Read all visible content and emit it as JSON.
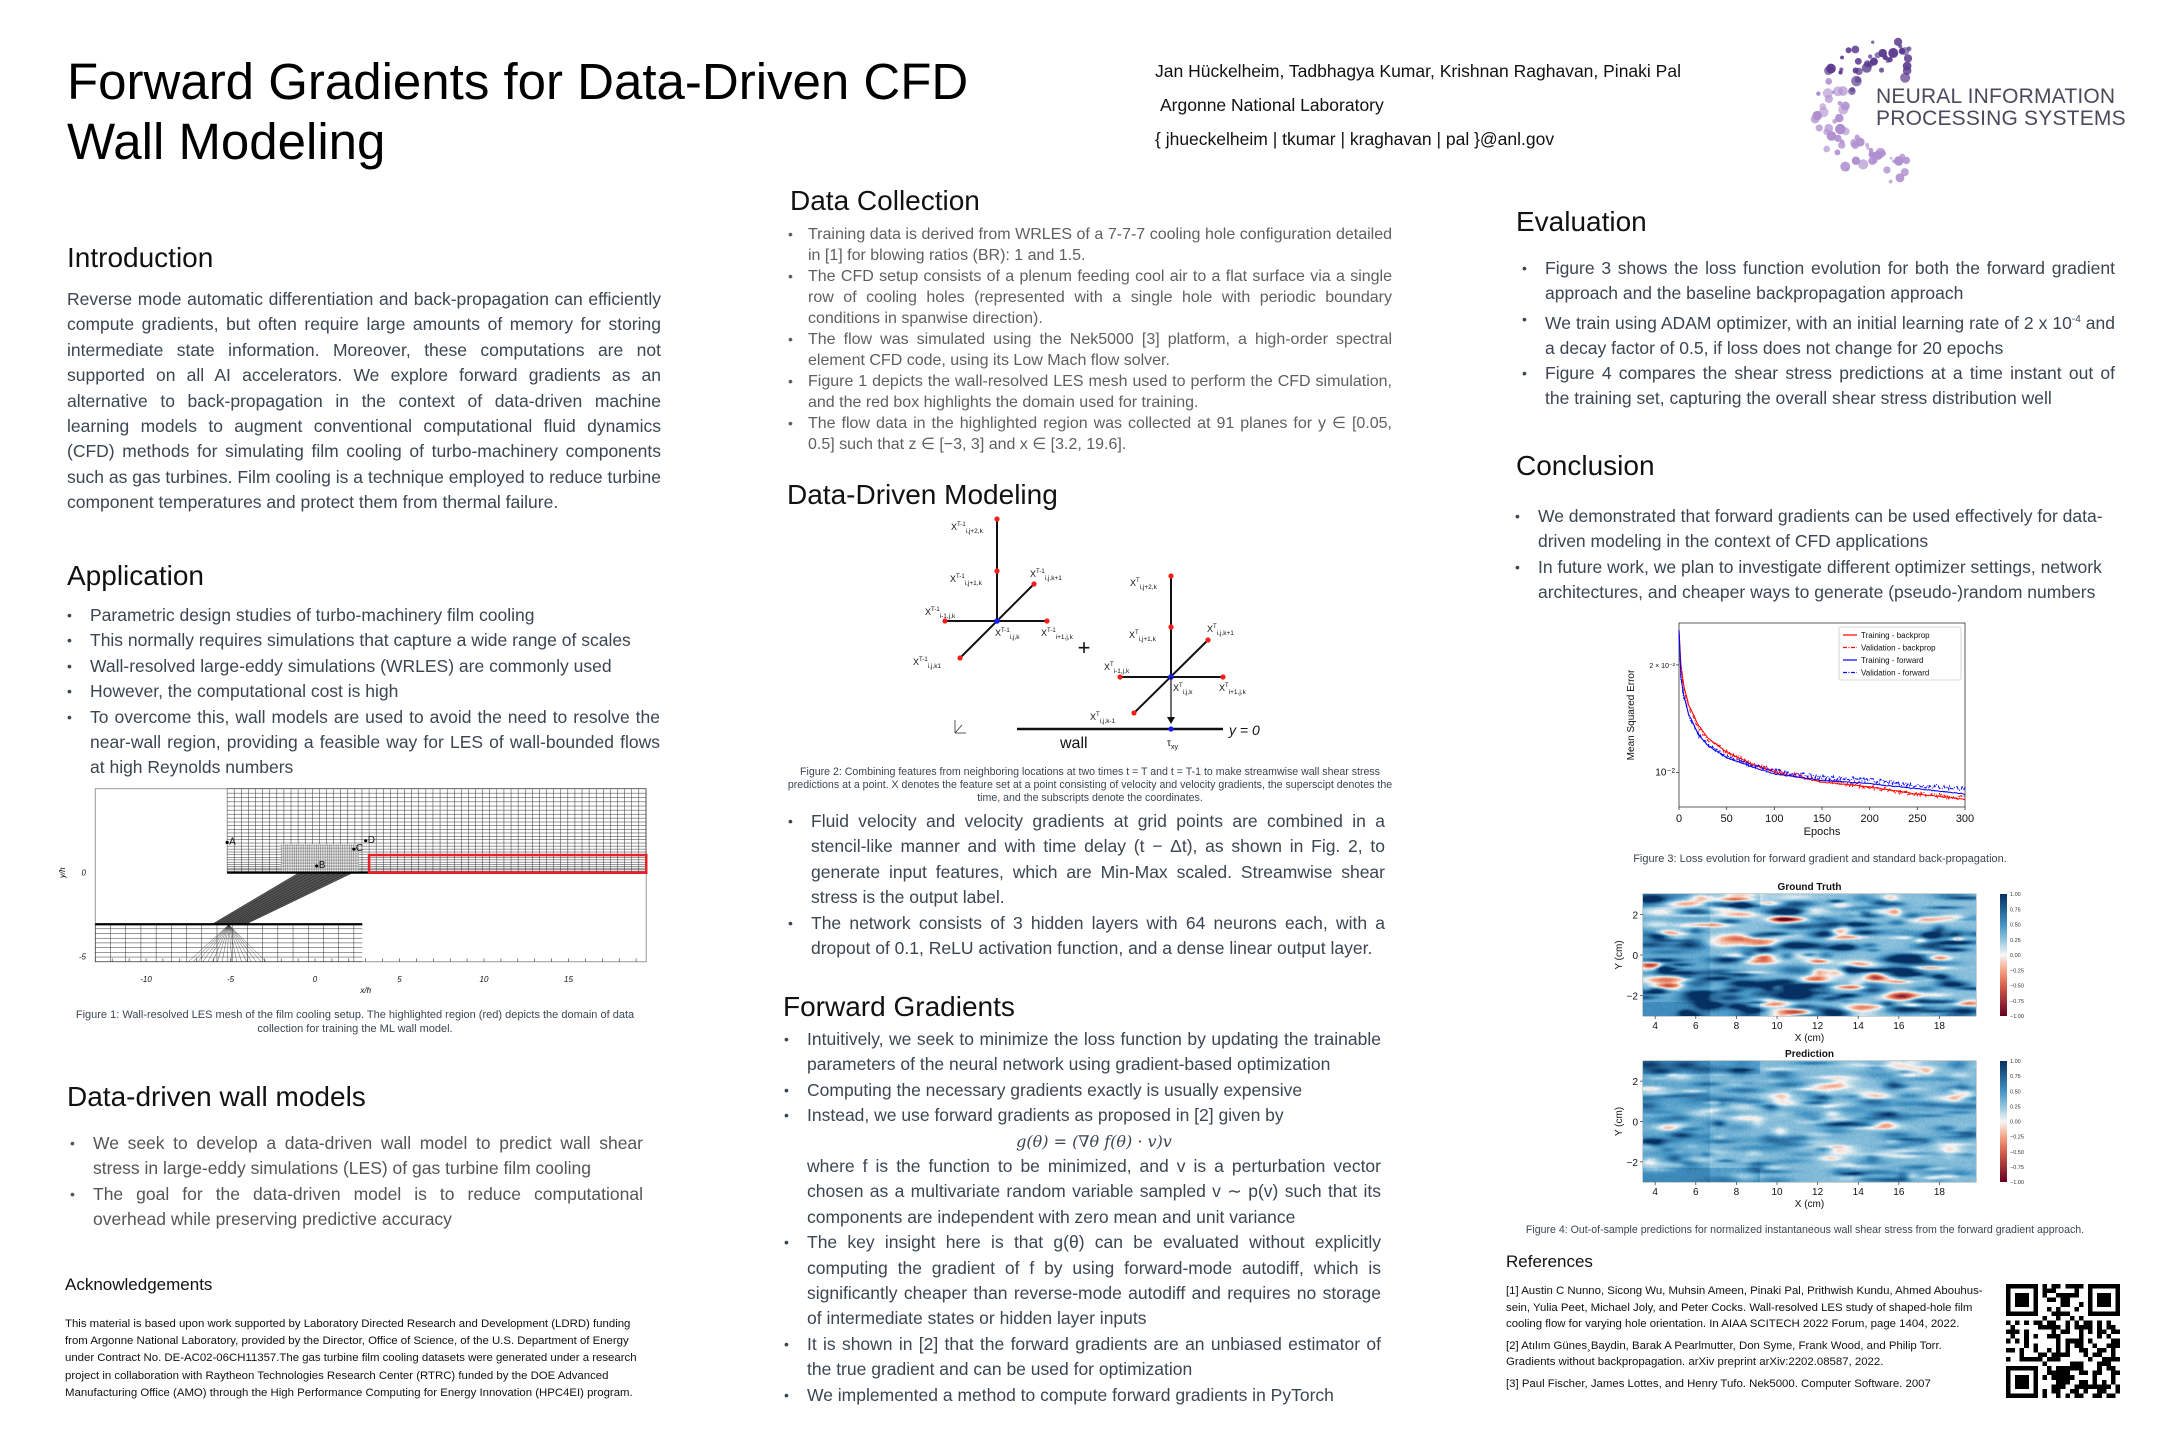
{
  "header": {
    "title_line1": "Forward Gradients for Data-Driven CFD",
    "title_line2": "Wall Modeling",
    "authors": "Jan Hückelheim, Tadbhagya Kumar, Krishnan Raghavan, Pinaki Pal",
    "affiliation": "Argonne National Laboratory",
    "emails": "{ jhueckelheim | tkumar | kraghavan | pal }@anl.gov",
    "logo": {
      "line1": "NEURAL INFORMATION",
      "line2": "PROCESSING SYSTEMS",
      "colors": [
        "#5a3a8e",
        "#b08fd0"
      ]
    }
  },
  "introduction": {
    "heading": "Introduction",
    "text": "Reverse mode automatic differentiation and back-propagation can efficiently compute gradients, but often require large amounts of memory for storing intermediate state information. Moreover, these computations are not supported on all AI accelerators. We explore forward gradients as an alternative to back-propagation in the context of data-driven machine learning models to augment conventional computational fluid dynamics (CFD) methods for simulating film cooling of turbo-machinery components such as gas turbines. Film cooling is a technique employed to reduce turbine component temperatures and protect them from thermal failure."
  },
  "application": {
    "heading": "Application",
    "bullets": [
      "Parametric design studies of turbo-machinery film cooling",
      "This normally requires simulations that capture a wide range of scales",
      "Wall-resolved large-eddy simulations (WRLES) are commonly used",
      "However, the computational cost is high",
      "To overcome this, wall models are used to avoid the need to resolve the near-wall region, providing a feasible way for LES of wall-bounded flows at high Reynolds numbers"
    ]
  },
  "figure1": {
    "caption": "Figure 1: Wall-resolved LES mesh of the film cooling setup. The highlighted region (red) depicts the domain of data collection for training the ML wall model.",
    "xlabel": "x/h",
    "ylabel": "y/h",
    "xticks": [
      "-10",
      "-5",
      "0",
      "5",
      "10",
      "15"
    ],
    "yticks": [
      "0",
      "-5"
    ],
    "point_labels": [
      "A",
      "B",
      "C",
      "D"
    ],
    "highlight_color": "#e8202a"
  },
  "wall_models": {
    "heading": "Data-driven wall models",
    "bullets": [
      "We seek to develop a data-driven wall model to predict wall shear stress in large-eddy simulations (LES) of gas turbine film cooling",
      "The goal for the data-driven model is to reduce computational overhead while preserving predictive accuracy"
    ]
  },
  "acknowledgements": {
    "heading": "Acknowledgements",
    "text": "This material is based upon work supported by Laboratory Directed Research and Development (LDRD) funding from Argonne National Laboratory, provided by the Director, Office of Science, of the U.S. Department of Energy under Contract No. DE-AC02-06CH11357.The gas turbine film cooling datasets were generated under a research project in collaboration with Raytheon Technologies Research Center (RTRC) funded by the DOE Advanced Manufacturing Office (AMO) through the High Performance Computing for Energy Innovation (HPC4EI) program."
  },
  "data_collection": {
    "heading": "Data Collection",
    "bullets": [
      "Training data is derived from WRLES of a 7-7-7 cooling hole configuration detailed in [1] for blowing ratios (BR): 1 and 1.5.",
      "The CFD setup consists of a plenum feeding cool air to a flat surface via a single row of cooling holes (represented with a single hole with periodic boundary conditions in spanwise direction).",
      "The flow was simulated using the Nek5000 [3] platform, a high-order spectral element CFD code, using its Low Mach flow solver.",
      "Figure 1 depicts the wall-resolved LES mesh used to perform the CFD simulation, and the red box highlights the domain used for training.",
      "The flow data in the highlighted region was collected at 91 planes for y ∈ [0.05, 0.5] such that z ∈ [−3, 3] and x ∈ [3.2, 19.6]."
    ]
  },
  "data_driven_modeling": {
    "heading": "Data-Driven Modeling",
    "figure2": {
      "labels_prev": [
        {
          "base": "X",
          "sup": "T-1",
          "sub": "i,j+2,k"
        },
        {
          "base": "X",
          "sup": "T-1",
          "sub": "i,j+1,k"
        },
        {
          "base": "X",
          "sup": "T-1",
          "sub": "i,j,k+1"
        },
        {
          "base": "X",
          "sup": "T-1",
          "sub": "i-1,j,k"
        },
        {
          "base": "X",
          "sup": "T-1",
          "sub": "i,j,k"
        },
        {
          "base": "X",
          "sup": "T-1",
          "sub": "i+1,j,k"
        },
        {
          "base": "X",
          "sup": "T-1",
          "sub": "i,j,k1"
        }
      ],
      "labels_curr": [
        {
          "base": "X",
          "sup": "T",
          "sub": "i,j+2,k"
        },
        {
          "base": "X",
          "sup": "T",
          "sub": "i,j+1,k"
        },
        {
          "base": "X",
          "sup": "T",
          "sub": "i,j,k+1"
        },
        {
          "base": "X",
          "sup": "T",
          "sub": "i-1,j,k"
        },
        {
          "base": "X",
          "sup": "T",
          "sub": "i,j,k"
        },
        {
          "base": "X",
          "sup": "T",
          "sub": "i+1,j,k"
        },
        {
          "base": "X",
          "sup": "T",
          "sub": "i,j,k-1"
        }
      ],
      "plus": "+",
      "wall": "wall",
      "tau": {
        "base": "τ",
        "sub": "xy"
      },
      "y0": "y = 0",
      "point_color": "#ff1a1a",
      "center_color": "#1a1aff",
      "caption": "Figure 2: Combining features from neighboring locations at two times t = T and t = T-1 to make streamwise wall shear stress predictions at a point. X denotes the feature set at a point consisting of velocity and velocity gradients, the superscipt denotes the time, and the subscripts denote the coordinates."
    },
    "bullets": [
      "Fluid velocity and velocity gradients at grid points are combined in a stencil-like manner and with time delay (t − Δt), as shown in Fig. 2, to generate input features, which are Min-Max scaled. Streamwise shear stress is the output label.",
      "The network consists of 3 hidden layers with 64 neurons each, with a dropout of 0.1, ReLU activation function, and a dense linear output layer."
    ]
  },
  "forward_gradients": {
    "heading": "Forward Gradients",
    "bullet1": "Intuitively, we seek to minimize the loss function by updating the trainable parameters of the neural network using gradient-based optimization",
    "bullet2": "Computing the necessary gradients exactly is usually expensive",
    "bullet3_intro": "Instead, we use forward gradients as proposed in [2] given by",
    "equation": "g(θ) = (∇θ f(θ) · v)v",
    "bullet3_rest": "where f is the function to be minimized, and v is a perturbation vector chosen as a multivariate random variable sampled v ∼ p(v) such that its components are independent with zero mean and unit variance",
    "bullet4": "The key insight here is that g(θ) can be evaluated without explicitly computing the gradient of f by using forward-mode autodiff, which is significantly cheaper than reverse-mode autodiff and requires no storage of intermediate states or hidden layer inputs",
    "bullet5": "It is shown in [2] that the forward gradients are an unbiased estimator of the true gradient and can be used for optimization",
    "bullet6": "We implemented a method to compute forward gradients in PyTorch"
  },
  "evaluation": {
    "heading": "Evaluation",
    "bullet1": "Figure 3 shows the loss function evolution for both the forward gradient approach and the baseline backpropagation approach",
    "bullet2_pre": "We train using ADAM optimizer, with an initial learning rate of 2 x 10",
    "bullet2_sup": "-4",
    "bullet2_post": " and a decay factor of 0.5, if loss does not change for 20 epochs",
    "bullet3": "Figure 4 compares the shear stress predictions at a time instant out of the training set, capturing the overall shear stress distribution well"
  },
  "conclusion": {
    "heading": "Conclusion",
    "bullets": [
      "We demonstrated that forward gradients can be used effectively for data-driven modeling in the context of CFD applications",
      "In future work, we plan to investigate different optimizer settings, network architectures, and cheaper ways to generate (pseudo-)random numbers"
    ]
  },
  "chart_data": [
    {
      "type": "line",
      "caption": "Figure 3: Loss evolution for forward gradient and standard back-propagation.",
      "xlabel": "Epochs",
      "ylabel": "Mean Squared Error",
      "xlim": [
        0,
        300
      ],
      "ylim": [
        0.008,
        0.0262
      ],
      "yscale": "log",
      "xticks": [
        "0",
        "50",
        "100",
        "150",
        "200",
        "250",
        "300"
      ],
      "yticks": [
        {
          "value": 0.02,
          "label": "2 × 10⁻²"
        },
        {
          "value": 0.01,
          "label": "10⁻²"
        }
      ],
      "grid": false,
      "legend_position": "top-right",
      "x": [
        0,
        2,
        5,
        10,
        20,
        30,
        50,
        75,
        100,
        150,
        200,
        250,
        300
      ],
      "series": [
        {
          "name": "Training - backprop",
          "color": "#ff0000",
          "style": "solid",
          "values": [
            0.025,
            0.02,
            0.0175,
            0.0155,
            0.0136,
            0.0125,
            0.0114,
            0.0106,
            0.01,
            0.0094,
            0.0091,
            0.0087,
            0.0084
          ]
        },
        {
          "name": "Validation - backprop",
          "color": "#ff0000",
          "style": "dashdot",
          "values": [
            0.0245,
            0.0195,
            0.0172,
            0.0152,
            0.0134,
            0.0124,
            0.0114,
            0.0106,
            0.0101,
            0.0095,
            0.0091,
            0.0087,
            0.0085
          ]
        },
        {
          "name": "Training - forward",
          "color": "#0000ff",
          "style": "solid",
          "values": [
            0.025,
            0.0185,
            0.0165,
            0.0146,
            0.0128,
            0.0119,
            0.011,
            0.0104,
            0.0099,
            0.0095,
            0.0093,
            0.009,
            0.0087
          ]
        },
        {
          "name": "Validation - forward",
          "color": "#0000ff",
          "style": "dashdot",
          "values": [
            0.0245,
            0.0182,
            0.0162,
            0.0144,
            0.0128,
            0.0119,
            0.0111,
            0.0105,
            0.0101,
            0.0097,
            0.0095,
            0.0092,
            0.009
          ]
        }
      ]
    },
    {
      "type": "heatmap",
      "caption": "Figure 4: Out-of-sample predictions for normalized instantaneous wall shear stress from the forward gradient approach.",
      "panels": [
        {
          "title": "Ground Truth"
        },
        {
          "title": "Prediction"
        }
      ],
      "xlabel": "X (cm)",
      "ylabel": "Y (cm)",
      "xlim": [
        3.4,
        19.8
      ],
      "ylim": [
        -3,
        3
      ],
      "xticks": [
        "4",
        "6",
        "8",
        "10",
        "12",
        "14",
        "16",
        "18"
      ],
      "yticks": [
        "2",
        "0",
        "−2"
      ],
      "colorbar": {
        "range": [
          -1,
          1
        ],
        "colormap": "RdBu",
        "ticks": [
          "1.00",
          "0.75",
          "0.50",
          "0.25",
          "0.00",
          "−0.25",
          "−0.50",
          "−0.75",
          "−1.00"
        ]
      }
    }
  ],
  "references": {
    "heading": "References",
    "items": [
      "[1] Austin C Nunno, Sicong Wu, Muhsin Ameen, Pinaki Pal, Prithwish Kundu, Ahmed Abouhus- sein, Yulia Peet, Michael Joly, and Peter Cocks. Wall-resolved LES study of shaped-hole film cooling flow for varying hole orientation. In AIAA SCITECH 2022 Forum, page 1404, 2022.",
      "[2] Atılım Günes¸Baydin, Barak A Pearlmutter, Don Syme, Frank Wood, and Philip Torr. Gradients without backpropagation. arXiv preprint arXiv:2202.08587, 2022.",
      "[3] Paul Fischer, James Lottes, and Henry Tufo. Nek5000. Computer Software. 2007"
    ]
  }
}
